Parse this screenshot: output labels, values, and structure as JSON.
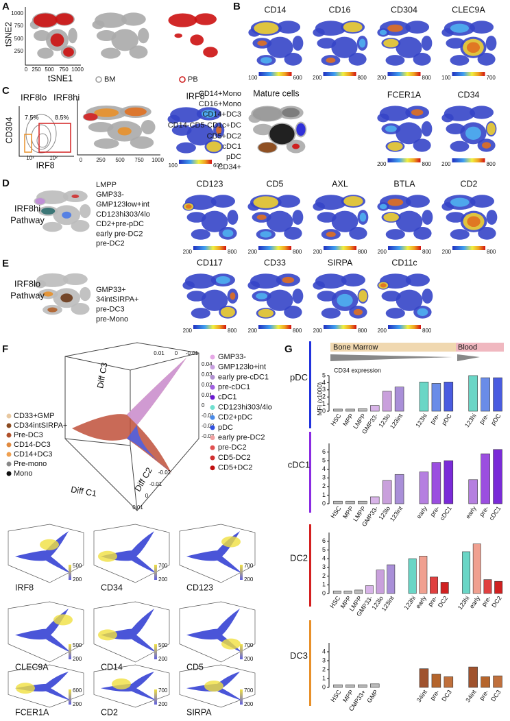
{
  "panel_letters": [
    "A",
    "B",
    "C",
    "D",
    "E",
    "F",
    "G"
  ],
  "panel_a": {
    "y_axis": "tSNE2",
    "x_axis": "tSNE1",
    "yticks": [
      "1000",
      "750",
      "500",
      "250"
    ],
    "xticks": [
      "0",
      "250",
      "500",
      "750",
      "1000"
    ],
    "legend": [
      {
        "label": "BM",
        "color": "#999999"
      },
      {
        "label": "PB",
        "color": "#cc1111"
      }
    ]
  },
  "marker_maps": [
    {
      "name": "CD14",
      "min": 100,
      "max": 600
    },
    {
      "name": "CD16",
      "min": 200,
      "max": 800
    },
    {
      "name": "CD304",
      "min": 200,
      "max": 800
    },
    {
      "name": "CLEC9A",
      "min": 100,
      "max": 700
    },
    {
      "name": "IRF8",
      "min": 100,
      "max": 600
    },
    {
      "name": "FCER1A",
      "min": 200,
      "max": 800
    },
    {
      "name": "CD34",
      "min": 200,
      "max": 800
    },
    {
      "name": "CD123",
      "min": 200,
      "max": 800
    },
    {
      "name": "CD5",
      "min": 200,
      "max": 800
    },
    {
      "name": "AXL",
      "min": 200,
      "max": 800
    },
    {
      "name": "BTLA",
      "min": 200,
      "max": 800
    },
    {
      "name": "CD2",
      "min": 200,
      "max": 800
    },
    {
      "name": "CD117",
      "min": 200,
      "max": 800
    },
    {
      "name": "CD33",
      "min": 200,
      "max": 800
    },
    {
      "name": "SIRPA",
      "min": 200,
      "max": 800
    },
    {
      "name": "CD11c",
      "min": 200,
      "max": 800
    }
  ],
  "panel_c": {
    "gate_lo": "IRF8lo",
    "gate_hi": "IRF8hi",
    "pct_lo": "7.5%",
    "pct_hi": "8.5%",
    "y_axis": "CD304",
    "x_axis": "IRF8",
    "flow_xticks": [
      "10¹",
      "10²"
    ],
    "tsne_xticks": [
      "0",
      "250",
      "500",
      "750",
      "1000"
    ],
    "mature_title": "Mature cells",
    "legend": [
      {
        "label": "CD14+Mono",
        "color": "#111111"
      },
      {
        "label": "CD16+Mono",
        "color": "#8b4513"
      },
      {
        "label": "CD14+DC3",
        "color": "#e8902a"
      },
      {
        "label": "CD14-CD5-CD1c+DC",
        "color": "#444444"
      },
      {
        "label": "CD5+DC2",
        "color": "#d01010"
      },
      {
        "label": "cDC1",
        "color": "#7b1fd8"
      },
      {
        "label": "pDC",
        "color": "#2222dd"
      },
      {
        "label": "CD34+",
        "color": "#999999"
      }
    ]
  },
  "panel_d": {
    "pathway": [
      "IRF8hi",
      "Pathway"
    ],
    "color": "#d42020",
    "legend": [
      {
        "label": "LMPP",
        "color": "#2e6e6e"
      },
      {
        "label": "GMP33-",
        "color": "#f4a0a0"
      },
      {
        "label": "GMP123low+int",
        "color": "#c08ad8"
      },
      {
        "label": "CD123hi303/4lo",
        "color": "#50d0c8"
      },
      {
        "label": "CD2+pre-pDC",
        "color": "#4a7ae8"
      },
      {
        "label": "early pre-DC2",
        "color": "#f08070"
      },
      {
        "label": "pre-DC2",
        "color": "#d03030"
      }
    ]
  },
  "panel_e": {
    "pathway": [
      "IRF8lo",
      "Pathway"
    ],
    "color": "#e8902a",
    "legend": [
      {
        "label": "GMP33+",
        "color": "#b0602a"
      },
      {
        "label": "34intSIRPA+",
        "color": "#6b3a1a"
      },
      {
        "label": "pre-DC3",
        "color": "#8a4a1a"
      },
      {
        "label": "pre-Mono",
        "color": "#777777"
      }
    ]
  },
  "panel_f": {
    "axes": [
      "Diff C1",
      "Diff C2",
      "Diff C3"
    ],
    "top_ticks": [
      "0.01",
      "0",
      "-0.01"
    ],
    "right_ticks": [
      "0.04",
      "0.03",
      "0.02",
      "0.01",
      "0",
      "-0.01",
      "-0.02",
      "-0.03"
    ],
    "bottom_ticks": [
      "-0.02",
      "-0.01",
      "0",
      "0.01"
    ],
    "legend_left": [
      {
        "label": "CD33+GMP",
        "color": "#e8c8a0"
      },
      {
        "label": "CD34intSIRPA+",
        "color": "#8a4a20"
      },
      {
        "label": "Pre-DC3",
        "color": "#b0502a"
      },
      {
        "label": "CD14-DC3",
        "color": "#e08a40"
      },
      {
        "label": "CD14+DC3",
        "color": "#f0a050"
      },
      {
        "label": "Pre-mono",
        "color": "#888888"
      },
      {
        "label": "Mono",
        "color": "#111111"
      }
    ],
    "legend_right": [
      {
        "label": "GMP33-",
        "color": "#e6a8e6"
      },
      {
        "label": "GMP123lo+int",
        "color": "#c8a0e0"
      },
      {
        "label": "early pre-cDC1",
        "color": "#b090d0"
      },
      {
        "label": "pre-cDC1",
        "color": "#a060e0"
      },
      {
        "label": "cDC1",
        "color": "#6a1ad0"
      },
      {
        "label": "CD123hi303/4lo",
        "color": "#70e0d0"
      },
      {
        "label": "CD2+pDC",
        "color": "#4a8ae8"
      },
      {
        "label": "pDC",
        "color": "#3050e0"
      },
      {
        "label": "early pre-DC2",
        "color": "#f0a0a0"
      },
      {
        "label": "pre-DC2",
        "color": "#e05050"
      },
      {
        "label": "CD5-DC2",
        "color": "#d03030"
      },
      {
        "label": "CD5+DC2",
        "color": "#c01010"
      }
    ],
    "small_plots": [
      {
        "name": "IRF8",
        "high": 500,
        "low": 200
      },
      {
        "name": "CD34",
        "high": 700,
        "low": 200
      },
      {
        "name": "CD123",
        "high": 700,
        "low": 200
      },
      {
        "name": "CLEC9A",
        "high": 500,
        "low": 200
      },
      {
        "name": "CD14",
        "high": 500,
        "low": 200
      },
      {
        "name": "CD5",
        "high": 700,
        "low": 200
      },
      {
        "name": "FCER1A",
        "high": 600,
        "low": 200
      },
      {
        "name": "CD2",
        "high": 700,
        "low": 200
      },
      {
        "name": "SIRPA",
        "high": 700,
        "low": 200
      }
    ]
  },
  "panel_g": {
    "bone_marrow": "Bone Marrow",
    "blood": "Blood",
    "gradient": "CD34 expression",
    "y_label": "MFI (x1000)"
  },
  "chart_data": [
    {
      "type": "bar",
      "title": "pDC",
      "title_color": "#2233dd",
      "categories": [
        "HSC",
        "MPP",
        "LMPP",
        "GMP33-",
        "123lo",
        "123int",
        null,
        "123hi",
        "pre-",
        "pDC",
        null,
        "123hi",
        "pre-",
        "pDC"
      ],
      "values": [
        0.3,
        0.3,
        0.35,
        0.8,
        2.8,
        3.4,
        null,
        4.1,
        3.9,
        4.1,
        null,
        5.0,
        4.7,
        4.7
      ],
      "colors": [
        "#bbbbbb",
        "#bbbbbb",
        "#bbbbbb",
        "#d8b4e8",
        "#c9a0dc",
        "#a98fd8",
        null,
        "#6ad6c6",
        "#6a8ce8",
        "#4a5ce0",
        null,
        "#6ad6c6",
        "#6a8ce8",
        "#4a5ce0"
      ],
      "ylim": [
        0,
        5
      ],
      "yticks": [
        0,
        1,
        2,
        3,
        4,
        5
      ]
    },
    {
      "type": "bar",
      "title": "cDC1",
      "title_color": "#8a2be2",
      "categories": [
        "HSC",
        "MPP",
        "LMPP",
        "GMP33-",
        "123lo",
        "123int",
        null,
        "early",
        "pre-",
        "cDC1",
        null,
        "early",
        "pre-",
        "cDC1"
      ],
      "values": [
        0.3,
        0.3,
        0.3,
        0.8,
        2.7,
        3.4,
        null,
        3.7,
        4.8,
        5.0,
        null,
        2.8,
        5.8,
        6.3
      ],
      "colors": [
        "#bbbbbb",
        "#bbbbbb",
        "#bbbbbb",
        "#d8b4e8",
        "#c9a0dc",
        "#a98fd8",
        null,
        "#b57fe0",
        "#9b4ee0",
        "#7a2ad8",
        null,
        "#b57fe0",
        "#9b4ee0",
        "#7a2ad8"
      ],
      "ylim": [
        0,
        7
      ],
      "yticks": [
        0,
        1,
        2,
        3,
        4,
        5,
        6
      ]
    },
    {
      "type": "bar",
      "title": "DC2",
      "title_color": "#d42020",
      "categories": [
        "HSC",
        "MPP",
        "LMPP",
        "GMP33-",
        "123lo",
        "123int",
        null,
        "123hi",
        "early",
        "pre-",
        "DC2",
        null,
        "123hi",
        "early",
        "pre-",
        "DC2"
      ],
      "values": [
        0.3,
        0.3,
        0.4,
        0.9,
        2.7,
        3.3,
        null,
        4.0,
        4.3,
        1.9,
        1.3,
        null,
        4.8,
        5.7,
        1.6,
        1.4
      ],
      "colors": [
        "#bbbbbb",
        "#bbbbbb",
        "#bbbbbb",
        "#d8b4e8",
        "#c9a0dc",
        "#a98fd8",
        null,
        "#6ad6c6",
        "#f0a090",
        "#e04040",
        "#d02020",
        null,
        "#6ad6c6",
        "#f0a090",
        "#e04040",
        "#d02020"
      ],
      "ylim": [
        0,
        7
      ],
      "yticks": [
        0,
        1,
        2,
        3,
        4,
        5,
        6
      ]
    },
    {
      "type": "bar",
      "title": "DC3",
      "title_color": "#e8902a",
      "categories": [
        "HSC",
        "MPP",
        "CMP33+",
        "GMP",
        null,
        null,
        null,
        "34int",
        "pre-",
        "DC3",
        null,
        "34int",
        "pre-",
        "DC3"
      ],
      "values": [
        0.3,
        0.3,
        0.3,
        0.4,
        null,
        null,
        null,
        2.1,
        1.5,
        1.2,
        null,
        2.3,
        1.2,
        1.3
      ],
      "colors": [
        "#bbbbbb",
        "#bbbbbb",
        "#bbbbbb",
        "#bbbbbb",
        null,
        null,
        null,
        "#a0522d",
        "#b5652c",
        "#c0703c",
        null,
        "#a0522d",
        "#b5652c",
        "#c0703c"
      ],
      "ylim": [
        0,
        5
      ],
      "yticks": [
        0,
        1,
        2,
        3,
        4
      ]
    }
  ]
}
